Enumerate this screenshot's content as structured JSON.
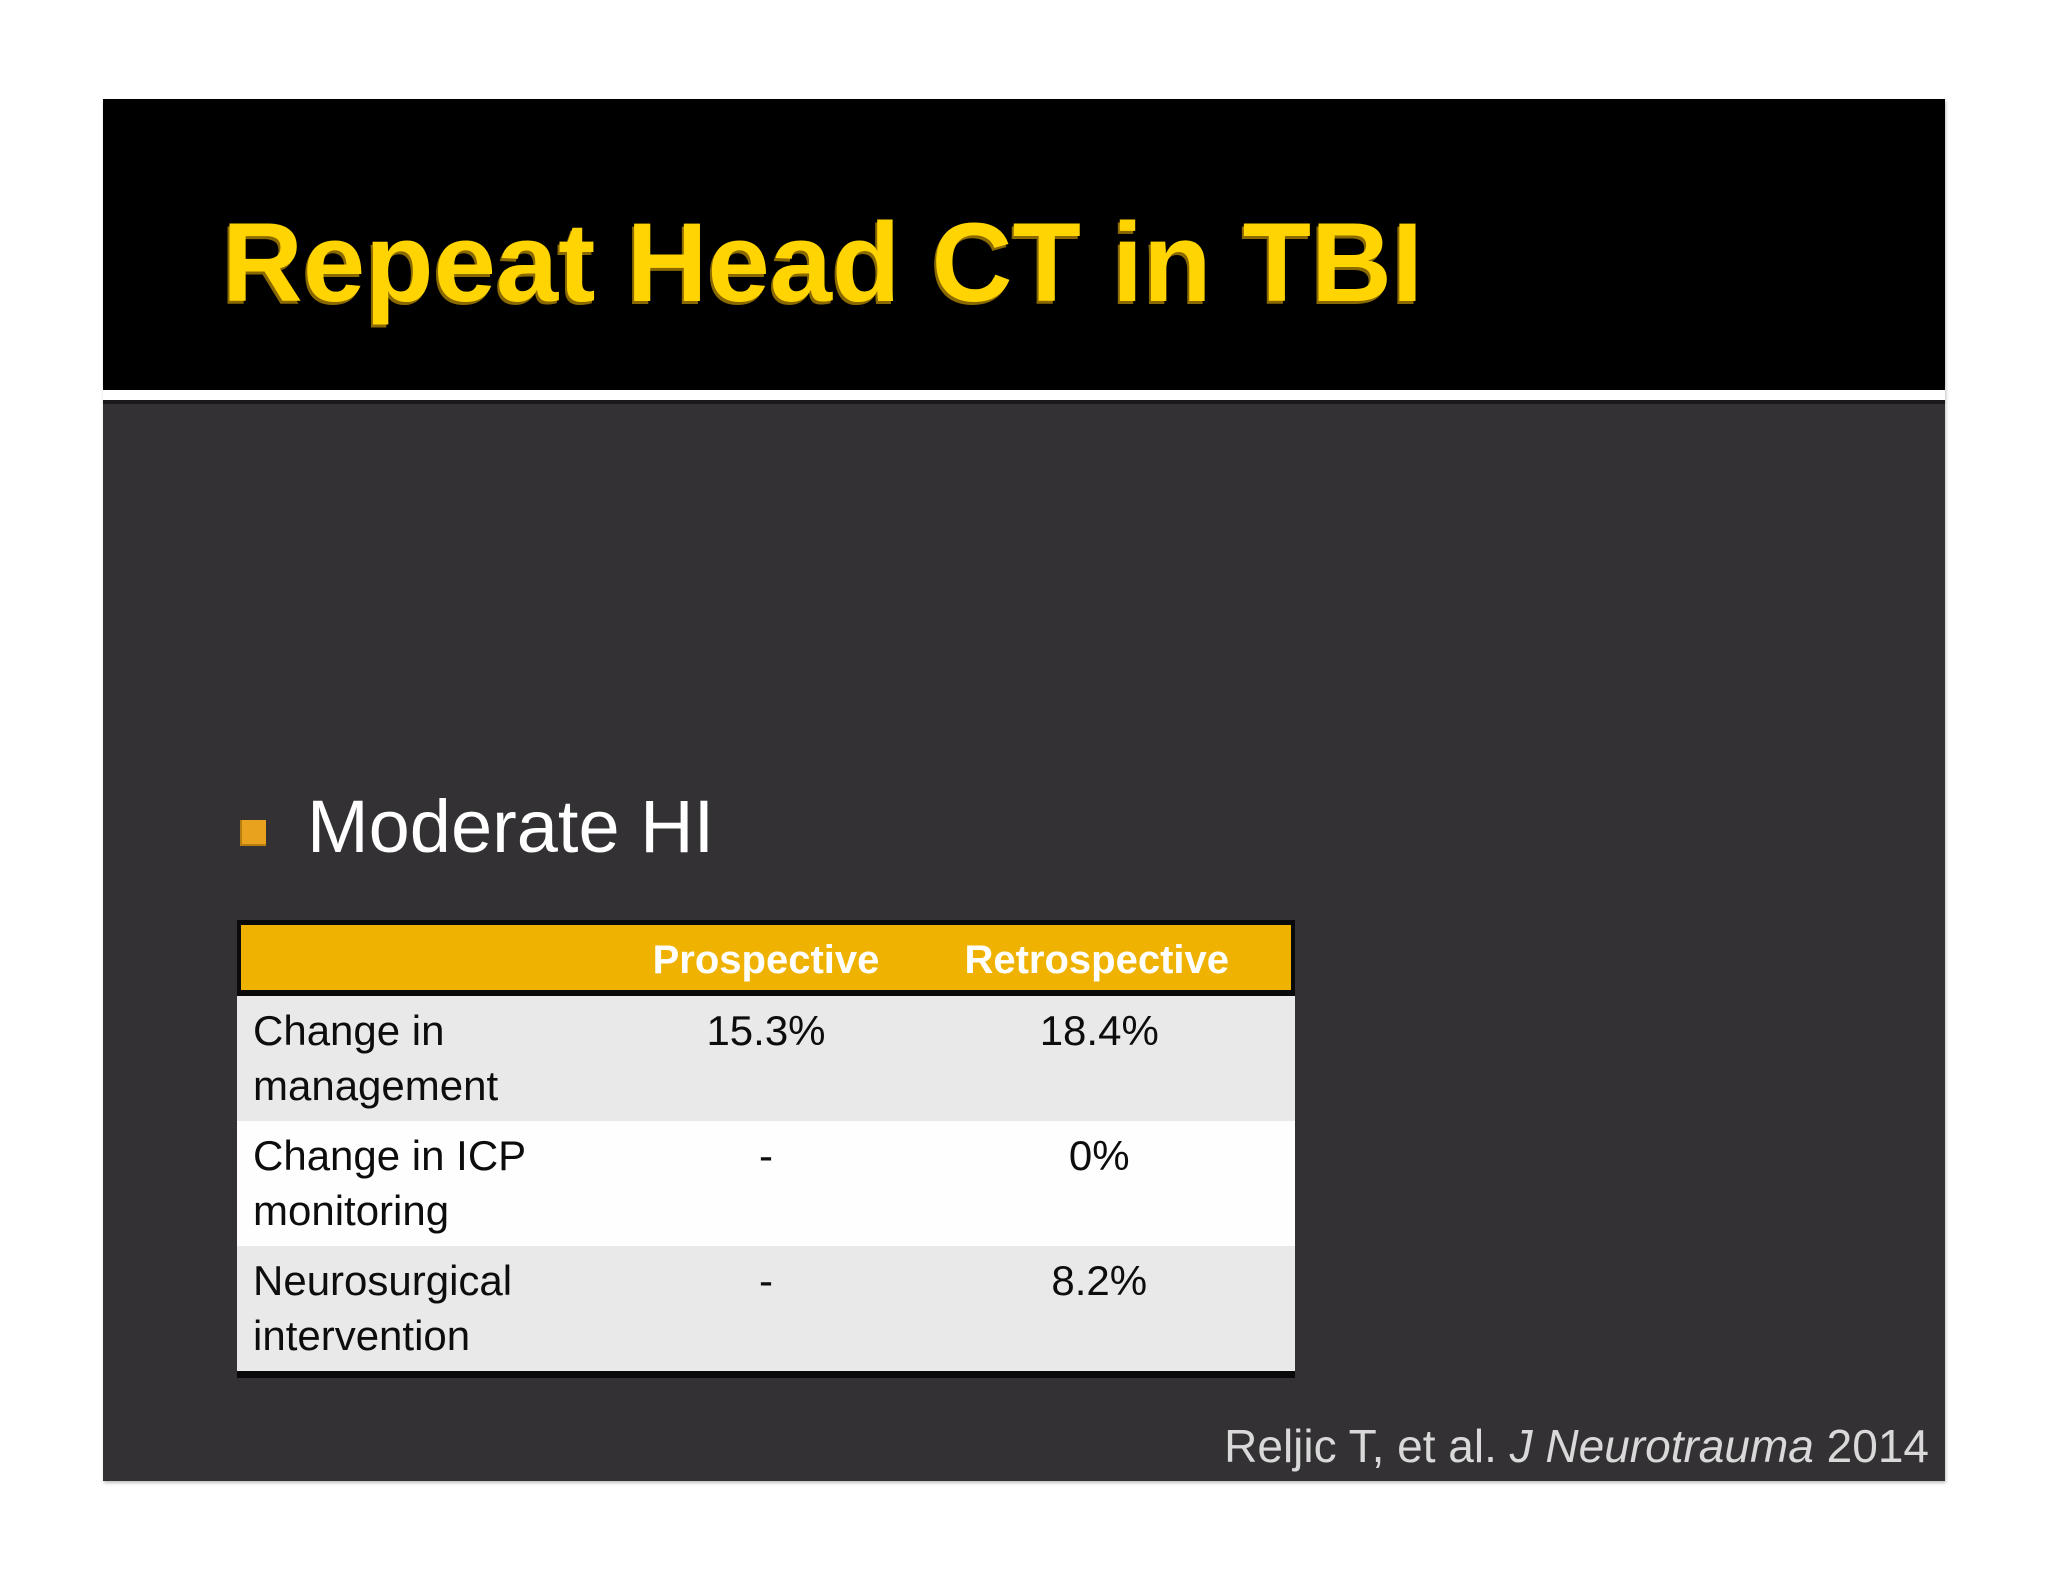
{
  "slide": {
    "title": "Repeat Head CT in TBI",
    "bullet": "Moderate HI",
    "table": {
      "columns": [
        "",
        "Prospective",
        "Retrospective"
      ],
      "rows": [
        {
          "label": "Change in management",
          "prospective": "15.3%",
          "retrospective": "18.4%"
        },
        {
          "label": "Change in ICP monitoring",
          "prospective": "-",
          "retrospective": "0%"
        },
        {
          "label": "Neurosurgical intervention",
          "prospective": "-",
          "retrospective": "8.2%"
        }
      ]
    },
    "citation": {
      "authors": "Reljic T, et al.",
      "journal": "J Neurotrauma",
      "year": "2014"
    },
    "colors": {
      "title_text": "#FFD400",
      "banner_bg": "#000000",
      "body_bg": "#333134",
      "bullet_square": "#E9A21E",
      "table_header_bg": "#F0B200",
      "table_header_text": "#FFFFFF",
      "row_alt_bg": "#E9E9E9",
      "row_plain_bg": "#FEFEFE",
      "citation_text": "#D9D9D9"
    }
  }
}
